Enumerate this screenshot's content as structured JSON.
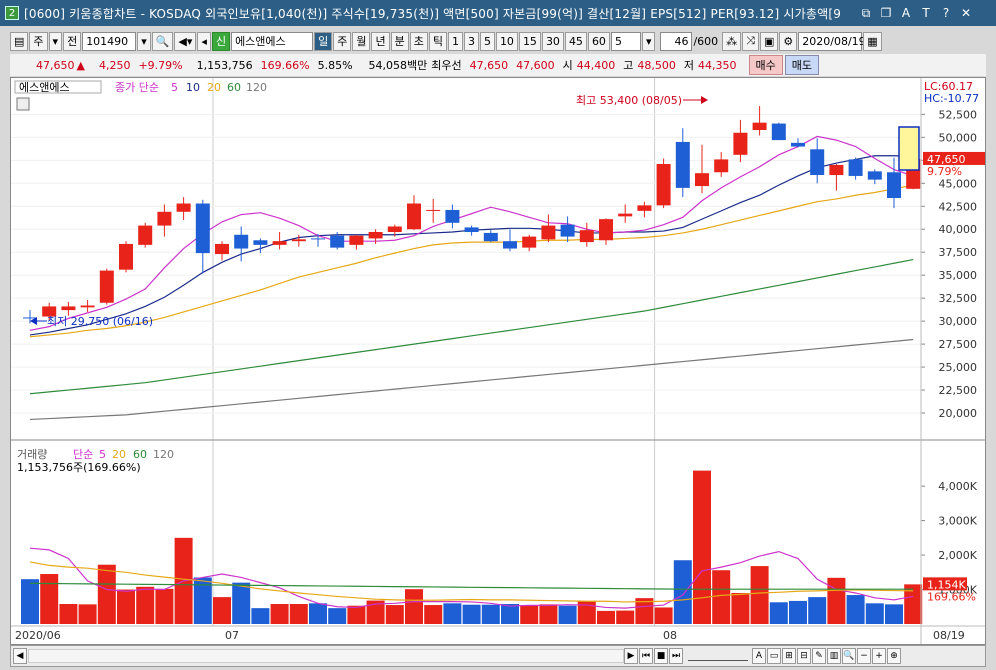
{
  "window": {
    "icon": "2",
    "title": "[0600] 키움종합차트 - KOSDAQ 외국인보유[1,040(천)] 주식수[19,735(천)] 액면[500] 자본금[99(억)] 결산[12월] EPS[512] PER[93.12] 시가총액[9",
    "buttons": [
      "⧉",
      "❐",
      "A",
      "T",
      "?",
      "✕"
    ]
  },
  "toolbar": {
    "period": "주",
    "prev": "전",
    "code": "101490",
    "stock_name": "에스앤에스",
    "periods": [
      "일",
      "주",
      "월",
      "년",
      "분",
      "초",
      "틱"
    ],
    "intervals": [
      "1",
      "3",
      "5",
      "10",
      "15",
      "30",
      "45",
      "60"
    ],
    "count_select": "5",
    "page": "46",
    "page_total": "/600",
    "date": "2020/08/19"
  },
  "quote": {
    "price": "47,650",
    "change_arrow": "▲",
    "change": "4,250",
    "rate": "+9.79%",
    "volume": "1,153,756",
    "vol_ratio": "169.66%",
    "turnover": "5.85%",
    "amount": "54,058백만",
    "priority": "최우선",
    "ask": "47,650",
    "bid": "47,600",
    "open_label": "시",
    "open": "44,400",
    "high_label": "고",
    "high": "48,500",
    "low_label": "저",
    "low": "44,350",
    "buy": "매수",
    "sell": "매도"
  },
  "price_panel": {
    "legend_name": "에스앤에스",
    "legend_ma_label": "종가 단순",
    "legend_periods": [
      "5",
      "10",
      "20",
      "60",
      "120"
    ],
    "lc": "LC:60.17",
    "hc": "HC:-10.77",
    "cur_price": "47,650",
    "cur_rate": "9.79%",
    "high_annot": "최고 53,400 (08/05)",
    "low_annot": "최저 29,750 (06/16)"
  },
  "volume_panel": {
    "legend_label": "거래량",
    "legend_ma_label": "단순",
    "legend_periods": [
      "5",
      "20",
      "60",
      "120"
    ],
    "value_text": "1,153,756주(169.66%)",
    "cur_vol": "1,154K",
    "cur_ratio": "169.66%"
  },
  "x_labels": [
    "2020/06",
    "07",
    "08",
    "08/19"
  ],
  "colors": {
    "up": "#e8241a",
    "down": "#1f5fd6",
    "ma5": "#cc33cc",
    "ma10": "#1a2a8a",
    "ma20": "#e6a817",
    "ma60": "#2e8b3a",
    "ma120": "#777777"
  },
  "chart_data": {
    "type": "candlestick",
    "y_ticks": [
      20000,
      22500,
      25000,
      27500,
      30000,
      32500,
      35000,
      37500,
      40000,
      42500,
      45000,
      47500,
      50000,
      52500
    ],
    "y_range": [
      17500,
      54500
    ],
    "candles": [
      [
        30400,
        31200,
        29750,
        30300
      ],
      [
        30500,
        32000,
        30100,
        31600
      ],
      [
        31200,
        32100,
        30600,
        31600
      ],
      [
        31500,
        32300,
        31000,
        31700
      ],
      [
        32000,
        35700,
        31800,
        35500
      ],
      [
        35600,
        38700,
        35300,
        38400
      ],
      [
        38300,
        40700,
        38000,
        40400
      ],
      [
        40400,
        42700,
        39200,
        41900
      ],
      [
        41900,
        43500,
        41000,
        42800
      ],
      [
        42800,
        43200,
        35200,
        37400
      ],
      [
        37300,
        38700,
        36600,
        38400
      ],
      [
        39400,
        40300,
        36500,
        37900
      ],
      [
        38800,
        39000,
        37400,
        38300
      ],
      [
        38300,
        39700,
        37800,
        38700
      ],
      [
        38700,
        39400,
        38100,
        38900
      ],
      [
        39000,
        39500,
        38100,
        38900
      ],
      [
        39300,
        39700,
        37800,
        38000
      ],
      [
        38300,
        39400,
        37800,
        39300
      ],
      [
        39000,
        40000,
        38400,
        39700
      ],
      [
        39700,
        40500,
        39200,
        40300
      ],
      [
        40000,
        43700,
        39900,
        42800
      ],
      [
        42000,
        43300,
        40700,
        42100
      ],
      [
        42100,
        42700,
        40100,
        40700
      ],
      [
        40200,
        40400,
        39300,
        39700
      ],
      [
        39600,
        39900,
        38600,
        38700
      ],
      [
        38700,
        40000,
        37600,
        37900
      ],
      [
        38000,
        39400,
        37600,
        39200
      ],
      [
        38900,
        41600,
        38600,
        40400
      ],
      [
        40500,
        41400,
        38600,
        39200
      ],
      [
        38600,
        40700,
        38100,
        39900
      ],
      [
        38800,
        41200,
        38300,
        41100
      ],
      [
        41400,
        42700,
        40700,
        41700
      ],
      [
        42000,
        43000,
        41300,
        42600
      ],
      [
        42600,
        47700,
        42300,
        47100
      ],
      [
        49500,
        51000,
        43500,
        44500
      ],
      [
        44700,
        49200,
        43900,
        46100
      ],
      [
        46200,
        48400,
        45700,
        47600
      ],
      [
        48100,
        51900,
        47300,
        50500
      ],
      [
        50800,
        53400,
        50200,
        51600
      ],
      [
        51500,
        51600,
        49700,
        49700
      ],
      [
        49400,
        49900,
        48900,
        49000
      ],
      [
        48700,
        49900,
        45000,
        45900
      ],
      [
        45900,
        47100,
        44200,
        47000
      ],
      [
        47600,
        47800,
        45400,
        45800
      ],
      [
        46300,
        46500,
        44900,
        45400
      ],
      [
        46200,
        47800,
        42300,
        43400
      ],
      [
        44400,
        48500,
        44350,
        47650
      ]
    ],
    "ma5": [
      29000,
      29400,
      30300,
      30900,
      31500,
      32400,
      33500,
      35800,
      37900,
      39500,
      40800,
      41600,
      41800,
      41200,
      40400,
      39300,
      38700,
      38700,
      38700,
      38800,
      39300,
      40300,
      41000,
      41700,
      42400,
      41900,
      41300,
      40700,
      40600,
      40000,
      39600,
      39700,
      39900,
      40500,
      41300,
      43100,
      44500,
      45700,
      46800,
      48100,
      49000,
      50100,
      49700,
      49000,
      47700,
      46500,
      45800
    ],
    "ma10": [
      28500,
      28800,
      29200,
      29600,
      30200,
      30800,
      31600,
      32600,
      33900,
      35300,
      36400,
      37300,
      37900,
      38600,
      39100,
      39300,
      39400,
      39400,
      39400,
      39400,
      39500,
      39600,
      39700,
      39900,
      40000,
      40100,
      40100,
      40000,
      39800,
      39600,
      39600,
      39700,
      39700,
      39800,
      40200,
      41100,
      42000,
      42900,
      43700,
      44800,
      45800,
      46700,
      47200,
      47600,
      48000,
      48000,
      47900
    ],
    "ma20": [
      28300,
      28500,
      28700,
      29000,
      29200,
      29500,
      29900,
      30400,
      31000,
      31600,
      32200,
      32800,
      33400,
      34100,
      34800,
      35300,
      35800,
      36300,
      36900,
      37400,
      37900,
      38300,
      38500,
      38600,
      38600,
      38600,
      38700,
      38800,
      38800,
      38900,
      38900,
      39000,
      39100,
      39300,
      39600,
      40000,
      40500,
      41000,
      41500,
      42000,
      42500,
      43000,
      43300,
      43700,
      44000,
      44400,
      44800
    ],
    "ma60": [
      22100,
      22300,
      22500,
      22700,
      22900,
      23100,
      23300,
      23600,
      23900,
      24200,
      24500,
      24800,
      25100,
      25400,
      25700,
      26000,
      26300,
      26600,
      26900,
      27200,
      27500,
      27800,
      28100,
      28400,
      28700,
      29000,
      29300,
      29600,
      29900,
      30200,
      30500,
      30800,
      31100,
      31500,
      31900,
      32300,
      32700,
      33100,
      33500,
      33900,
      34300,
      34700,
      35100,
      35500,
      35900,
      36300,
      36700
    ],
    "ma120": [
      19300,
      19400,
      19500,
      19600,
      19700,
      19800,
      20000,
      20200,
      20400,
      20600,
      20800,
      21000,
      21200,
      21400,
      21600,
      21800,
      22000,
      22200,
      22400,
      22600,
      22800,
      23000,
      23200,
      23400,
      23600,
      23800,
      24000,
      24200,
      24400,
      24600,
      24800,
      25000,
      25200,
      25400,
      25600,
      25800,
      26000,
      26200,
      26400,
      26600,
      26800,
      27000,
      27200,
      27400,
      27600,
      27800,
      28000
    ],
    "volume_ticks": [
      1000000,
      2000000,
      3000000,
      4000000
    ],
    "volume_ytick_labels": [
      "1,000K",
      "2,000K",
      "3,000K",
      "4,000K"
    ],
    "volume_range": [
      0,
      4700000
    ],
    "volumes": [
      1300000,
      1450000,
      580000,
      570000,
      1720000,
      1000000,
      1080000,
      1020000,
      2500000,
      1350000,
      780000,
      1200000,
      460000,
      580000,
      580000,
      600000,
      460000,
      530000,
      680000,
      550000,
      1010000,
      550000,
      600000,
      560000,
      560000,
      580000,
      540000,
      570000,
      530000,
      660000,
      380000,
      390000,
      750000,
      480000,
      1850000,
      4450000,
      1560000,
      900000,
      1680000,
      630000,
      670000,
      780000,
      1340000,
      840000,
      600000,
      570000,
      1150000
    ],
    "vol_ma5": [
      2200000,
      2150000,
      1900000,
      1250000,
      1000000,
      950000,
      1010000,
      1000000,
      1250000,
      1350000,
      1450000,
      1350000,
      1200000,
      1050000,
      800000,
      600000,
      500000,
      480000,
      580000,
      600000,
      650000,
      650000,
      650000,
      640000,
      600000,
      520000,
      540000,
      540000,
      560000,
      550000,
      480000,
      460000,
      510000,
      550000,
      840000,
      1540000,
      1650000,
      1780000,
      1970000,
      2100000,
      1900000,
      1300000,
      1000000,
      900000,
      760000,
      700000,
      800000
    ],
    "vol_ma20": [
      1800000,
      1700000,
      1650000,
      1620000,
      1550000,
      1500000,
      1420000,
      1360000,
      1300000,
      1250000,
      1180000,
      1100000,
      1020000,
      960000,
      900000,
      850000,
      800000,
      760000,
      720000,
      700000,
      690000,
      690000,
      700000,
      710000,
      700000,
      700000,
      690000,
      680000,
      670000,
      660000,
      660000,
      640000,
      650000,
      660000,
      700000,
      760000,
      830000,
      860000,
      900000,
      920000,
      950000,
      960000,
      980000,
      990000,
      980000,
      970000,
      960000
    ],
    "vol_ma60": [
      1180000,
      1175000,
      1170000,
      1165000,
      1160000,
      1155000,
      1150000,
      1145000,
      1140000,
      1135000,
      1130000,
      1125000,
      1120000,
      1115000,
      1110000,
      1105000,
      1100000,
      1095000,
      1090000,
      1085000,
      1080000,
      1075000,
      1070000,
      1065000,
      1060000,
      1055000,
      1050000,
      1045000,
      1040000,
      1035000,
      1030000,
      1025000,
      1020000,
      1015000,
      1010000,
      1010000,
      1010000,
      1010000,
      1010000,
      1010000,
      1010000,
      1010000,
      1010000,
      1010000,
      1010000,
      1010000,
      1010000
    ]
  }
}
